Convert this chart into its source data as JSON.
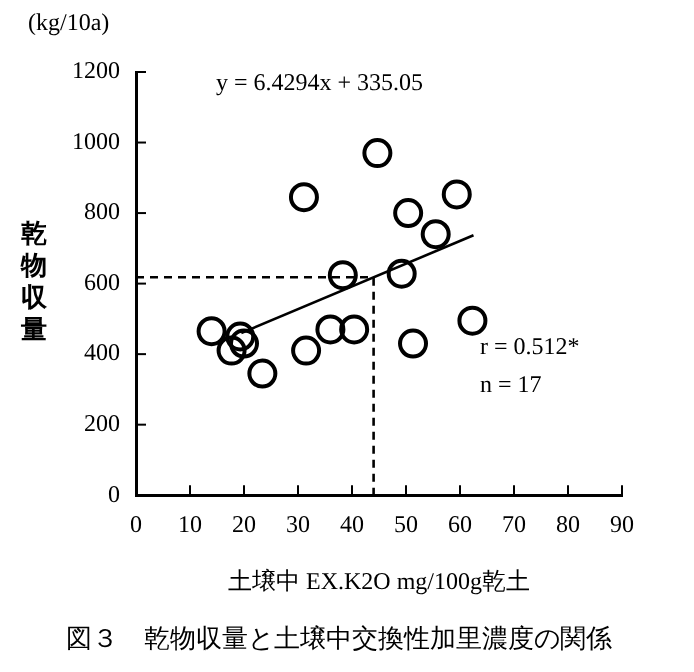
{
  "chart_data": {
    "type": "scatter",
    "title": "図３　乾物収量と土壌中交換性加里濃度の関係",
    "xlabel": "土壌中 EX.K2O mg/100g乾土",
    "ylabel": "乾物収量",
    "annotations": [
      "(kg/10a)",
      "y = 6.4294x + 335.05",
      "r = 0.512*",
      "n = 17"
    ],
    "xlim": [
      0,
      90
    ],
    "xticks": [
      0,
      10,
      20,
      30,
      40,
      50,
      60,
      70,
      80,
      90
    ],
    "ylim": [
      0,
      1200
    ],
    "yticks": [
      0,
      200,
      400,
      600,
      800,
      1000,
      1200
    ],
    "grid": false,
    "legend": false,
    "series": [
      {
        "type": "scatter",
        "color": "#000000",
        "marker": "circle",
        "x": [
          14,
          19.3,
          17.7,
          20,
          23.4,
          31.5,
          36,
          40.4,
          51.3,
          62.3,
          31.1,
          44.7,
          38.3,
          49.2,
          50.4,
          55.5,
          59.4
        ],
        "values": [
          465,
          450,
          410,
          430,
          345,
          410,
          470,
          470,
          430,
          495,
          845,
          970,
          624,
          628,
          800,
          740,
          853
        ]
      },
      {
        "type": "line",
        "color": "#000000",
        "line_style": "solid",
        "marker": "none",
        "x": [
          19.5,
          62.5
        ],
        "values": [
          460,
          737
        ]
      },
      {
        "type": "line",
        "color": "#000000",
        "line_style": "dashed",
        "marker": "none",
        "x": [
          0,
          44,
          44
        ],
        "values": [
          618,
          618,
          0
        ]
      }
    ]
  }
}
